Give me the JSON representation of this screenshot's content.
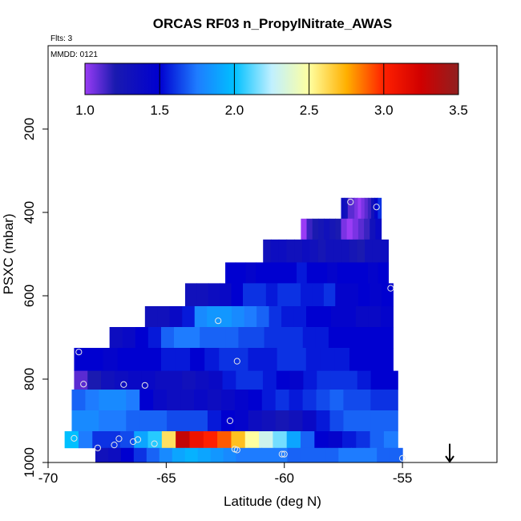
{
  "chart_data": {
    "type": "heatmap",
    "title": "ORCAS RF03 n_PropylNitrate_AWAS",
    "flights_label": "Flts: 3",
    "date_label": "MMDD: 0121",
    "xlabel": "Latitude (deg N)",
    "ylabel": "PSXC (mbar)",
    "xlim": [
      -70,
      -51
    ],
    "ylim": [
      1000,
      0
    ],
    "x_ticks": [
      -70,
      -65,
      -60,
      -55
    ],
    "x_tick_labels": [
      "-70",
      "-65",
      "-60",
      "-55"
    ],
    "y_ticks": [
      200,
      400,
      600,
      800,
      1000
    ],
    "y_tick_labels": [
      "200",
      "400",
      "600",
      "800",
      "1000"
    ],
    "colorbar": {
      "min": 1.0,
      "max": 3.5,
      "ticks": [
        1.0,
        1.5,
        2.0,
        2.5,
        3.0,
        3.5
      ],
      "tick_labels": [
        "1.0",
        "1.5",
        "2.0",
        "2.5",
        "3.0",
        "3.5"
      ],
      "stops": [
        {
          "v": 1.0,
          "color": "#9a3cf5"
        },
        {
          "v": 1.2,
          "color": "#1a1ab0"
        },
        {
          "v": 1.5,
          "color": "#0000d0"
        },
        {
          "v": 1.75,
          "color": "#1e7cff"
        },
        {
          "v": 2.0,
          "color": "#00c0ff"
        },
        {
          "v": 2.25,
          "color": "#c0f0ff"
        },
        {
          "v": 2.5,
          "color": "#ffffa0"
        },
        {
          "v": 2.75,
          "color": "#ffb000"
        },
        {
          "v": 3.0,
          "color": "#ff2000"
        },
        {
          "v": 3.25,
          "color": "#d00000"
        },
        {
          "v": 3.5,
          "color": "#902020"
        }
      ]
    },
    "rows": [
      {
        "p_top": 365,
        "p_bot": 415,
        "x0": -57.6,
        "x1": -55.9,
        "values": [
          1.35,
          1.3,
          1.1,
          1.1,
          1.05,
          1.0,
          1.05,
          1.1,
          1.15,
          1.3,
          1.45,
          1.6
        ]
      },
      {
        "p_top": 415,
        "p_bot": 465,
        "x0": -59.3,
        "x1": -55.9,
        "values": [
          1.0,
          1.15,
          1.2,
          1.25,
          1.3,
          1.25,
          1.2,
          1.05,
          1.0,
          1.05,
          1.1,
          1.15,
          1.3,
          1.4
        ]
      },
      {
        "p_top": 465,
        "p_bot": 520,
        "x0": -60.9,
        "x1": -55.6,
        "values": [
          1.3,
          1.35,
          1.35,
          1.3,
          1.3,
          1.35,
          1.3,
          1.25,
          1.3,
          1.3,
          1.3,
          1.25,
          1.2,
          1.3,
          1.3,
          1.35
        ]
      },
      {
        "p_top": 520,
        "p_bot": 570,
        "x0": -62.5,
        "x1": -55.6,
        "values": [
          1.5,
          1.5,
          1.45,
          1.5,
          1.5,
          1.5,
          1.5,
          1.55,
          1.5,
          1.5,
          1.45,
          1.5,
          1.5,
          1.5,
          1.45,
          1.5
        ]
      },
      {
        "p_top": 570,
        "p_bot": 625,
        "x0": -64.2,
        "x1": -55.4,
        "values": [
          1.3,
          1.3,
          1.35,
          1.4,
          1.5,
          1.6,
          1.6,
          1.55,
          1.6,
          1.6,
          1.55,
          1.55,
          1.6,
          1.45,
          1.45,
          1.5,
          1.45,
          1.5
        ]
      },
      {
        "p_top": 625,
        "p_bot": 675,
        "x0": -65.9,
        "x1": -55.4,
        "values": [
          1.3,
          1.3,
          1.4,
          1.55,
          1.8,
          1.85,
          1.85,
          1.8,
          1.75,
          1.7,
          1.6,
          1.55,
          1.55,
          1.5,
          1.5,
          1.45,
          1.45,
          1.4,
          1.4,
          1.45
        ]
      },
      {
        "p_top": 675,
        "p_bot": 725,
        "x0": -67.4,
        "x1": -55.4,
        "values": [
          1.35,
          1.4,
          1.5,
          1.55,
          1.7,
          1.75,
          1.75,
          1.7,
          1.7,
          1.7,
          1.65,
          1.65,
          1.6,
          1.6,
          1.6,
          1.55,
          1.55,
          1.5,
          1.5,
          1.5,
          1.5,
          1.5
        ]
      },
      {
        "p_top": 725,
        "p_bot": 780,
        "x0": -68.9,
        "x1": -55.4,
        "values": [
          1.5,
          1.5,
          1.45,
          1.5,
          1.5,
          1.5,
          1.55,
          1.55,
          1.5,
          1.55,
          1.6,
          1.6,
          1.55,
          1.55,
          1.6,
          1.6,
          1.55,
          1.55,
          1.55,
          1.5,
          1.5,
          1.5
        ]
      },
      {
        "p_top": 780,
        "p_bot": 825,
        "x0": -68.9,
        "x1": -55.2,
        "values": [
          1.1,
          1.2,
          1.3,
          1.35,
          1.4,
          1.4,
          1.35,
          1.35,
          1.3,
          1.35,
          1.4,
          1.55,
          1.6,
          1.6,
          1.55,
          1.5,
          1.45,
          1.55,
          1.6,
          1.6,
          1.6,
          1.55,
          1.5,
          1.5
        ]
      },
      {
        "p_top": 825,
        "p_bot": 875,
        "x0": -69.0,
        "x1": -55.2,
        "values": [
          1.7,
          1.75,
          1.8,
          1.8,
          1.75,
          1.5,
          1.4,
          1.35,
          1.35,
          1.4,
          1.35,
          1.4,
          1.45,
          1.5,
          1.55,
          1.6,
          1.55,
          1.6,
          1.65,
          1.7,
          1.65,
          1.65,
          1.6,
          1.6
        ]
      },
      {
        "p_top": 875,
        "p_bot": 925,
        "x0": -69.0,
        "x1": -55.2,
        "values": [
          1.8,
          1.8,
          1.75,
          1.75,
          1.7,
          1.7,
          1.7,
          1.65,
          1.65,
          1.65,
          1.55,
          1.5,
          1.45,
          1.35,
          1.3,
          1.25,
          1.3,
          1.4,
          1.55,
          1.65,
          1.7,
          1.7,
          1.7,
          1.7
        ]
      },
      {
        "p_top": 925,
        "p_bot": 965,
        "x0": -69.3,
        "x1": -55.2,
        "values": [
          2.0,
          1.75,
          1.6,
          1.6,
          1.65,
          1.9,
          2.05,
          2.6,
          3.3,
          3.1,
          3.0,
          2.9,
          2.7,
          2.5,
          2.3,
          2.15,
          1.9,
          1.7,
          1.5,
          1.45,
          1.55,
          1.6,
          1.7,
          1.75
        ]
      },
      {
        "p_top": 965,
        "p_bot": 1000,
        "x0": -68.0,
        "x1": -55.0,
        "values": [
          1.3,
          1.35,
          1.5,
          1.6,
          1.7,
          1.8,
          1.9,
          1.95,
          1.9,
          1.85,
          1.8,
          1.75,
          1.75,
          1.75,
          1.75,
          1.7,
          1.7,
          1.7,
          1.7,
          1.75,
          1.75,
          1.75,
          1.7,
          1.7
        ]
      }
    ],
    "sample_points": [
      {
        "lat": -57.2,
        "p": 375
      },
      {
        "lat": -56.1,
        "p": 387
      },
      {
        "lat": -55.5,
        "p": 582
      },
      {
        "lat": -62.8,
        "p": 660
      },
      {
        "lat": -68.7,
        "p": 735
      },
      {
        "lat": -62.0,
        "p": 757
      },
      {
        "lat": -68.5,
        "p": 812
      },
      {
        "lat": -66.8,
        "p": 813
      },
      {
        "lat": -65.9,
        "p": 815
      },
      {
        "lat": -62.3,
        "p": 900
      },
      {
        "lat": -68.9,
        "p": 942
      },
      {
        "lat": -67.0,
        "p": 943
      },
      {
        "lat": -66.2,
        "p": 945
      },
      {
        "lat": -66.4,
        "p": 950
      },
      {
        "lat": -65.5,
        "p": 955
      },
      {
        "lat": -67.2,
        "p": 958
      },
      {
        "lat": -67.9,
        "p": 965
      },
      {
        "lat": -62.1,
        "p": 968
      },
      {
        "lat": -62.0,
        "p": 970
      },
      {
        "lat": -60.1,
        "p": 980
      },
      {
        "lat": -60.0,
        "p": 980
      },
      {
        "lat": -55.0,
        "p": 990
      }
    ],
    "arrow": {
      "lat": -53.0,
      "p_from": 955,
      "p_to": 1010
    },
    "grid": false,
    "legend_position": "top"
  }
}
